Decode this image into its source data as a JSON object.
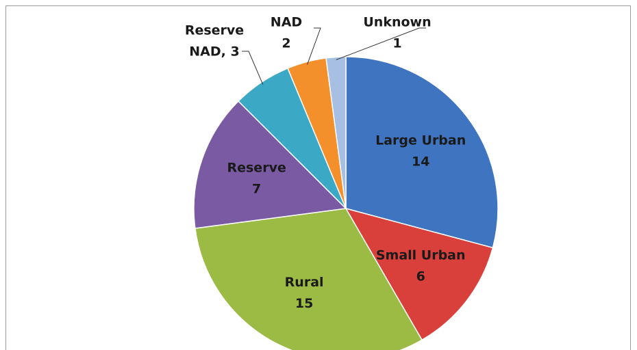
{
  "chart_data": {
    "type": "pie",
    "values": [
      14,
      6,
      15,
      7,
      3,
      2,
      1
    ],
    "labels": [
      [
        "Large Urban",
        "14"
      ],
      [
        "Small Urban",
        "6"
      ],
      [
        "Rural",
        "15"
      ],
      [
        "Reserve",
        "7"
      ],
      [
        "Reserve",
        "NAD, 3"
      ],
      [
        "NAD",
        "2"
      ],
      [
        "Unknown",
        "1"
      ]
    ],
    "colors": [
      "#3f74c0",
      "#d9403b",
      "#9bbb44",
      "#7a5aa3",
      "#3ba9c6",
      "#f3902b",
      "#a6bfe3"
    ]
  }
}
